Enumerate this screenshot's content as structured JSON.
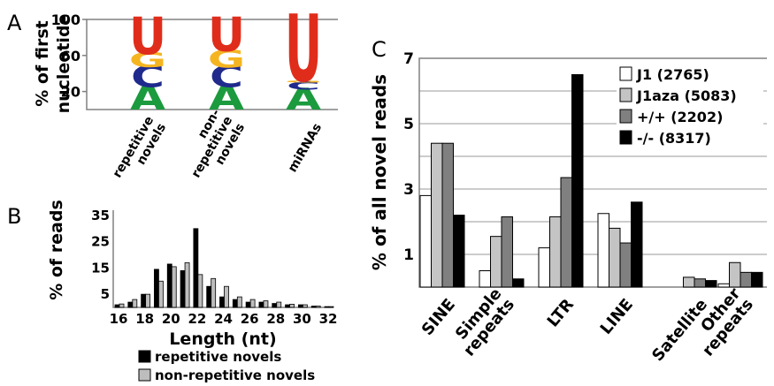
{
  "panel_labels": {
    "a": "A",
    "b": "B",
    "c": "C"
  },
  "chart_data": [
    {
      "type": "sequence-logo",
      "panel": "A",
      "ylabel": [
        "% of first",
        "nucleotide"
      ],
      "ylim": [
        0,
        100
      ],
      "yticks": [
        20,
        60,
        100
      ],
      "categories": [
        "repetitive novels",
        "non-repetitive novels",
        "miRNAs"
      ],
      "category_lines": [
        [
          "repetitive",
          "novels"
        ],
        [
          "non-",
          "repetitive",
          "novels"
        ],
        [
          "miRNAs"
        ]
      ],
      "letter_colors": {
        "U": "#e02d1b",
        "G": "#f5b521",
        "C": "#1f2a8c",
        "A": "#1c9a3e"
      },
      "series": [
        {
          "name": "repetitive novels",
          "letters": [
            {
              "letter": "A",
              "value": 25
            },
            {
              "letter": "C",
              "value": 22
            },
            {
              "letter": "G",
              "value": 15
            },
            {
              "letter": "U",
              "value": 38
            }
          ]
        },
        {
          "name": "non-repetitive novels",
          "letters": [
            {
              "letter": "A",
              "value": 25
            },
            {
              "letter": "C",
              "value": 22
            },
            {
              "letter": "G",
              "value": 18
            },
            {
              "letter": "U",
              "value": 35
            }
          ]
        },
        {
          "name": "miRNAs",
          "letters": [
            {
              "letter": "A",
              "value": 22
            },
            {
              "letter": "C",
              "value": 8
            },
            {
              "letter": "G",
              "value": 2
            },
            {
              "letter": "U",
              "value": 68
            }
          ]
        }
      ]
    },
    {
      "type": "bar",
      "panel": "B",
      "xlabel": "Length (nt)",
      "ylabel": "% of reads",
      "ylim": [
        0,
        37
      ],
      "yticks": [
        5,
        15,
        25,
        35
      ],
      "xticks": [
        16,
        18,
        20,
        22,
        24,
        26,
        28,
        30,
        32
      ],
      "categories": [
        16,
        17,
        18,
        19,
        20,
        21,
        22,
        23,
        24,
        25,
        26,
        27,
        28,
        29,
        30,
        31,
        32
      ],
      "series": [
        {
          "name": "repetitive novels",
          "color": "#000000",
          "values": [
            1,
            2,
            5,
            14.5,
            16.5,
            14,
            30,
            8,
            4,
            3,
            2,
            2,
            1.5,
            1,
            1,
            0.5,
            0.3
          ]
        },
        {
          "name": "non-repetitive novels",
          "color": "#bdbdbd",
          "values": [
            1.3,
            3,
            5,
            10,
            15.5,
            17,
            12.5,
            11,
            8,
            4,
            3,
            2.5,
            2,
            1.2,
            1,
            0.5,
            0.3
          ]
        }
      ],
      "legend": [
        "repetitive novels",
        "non-repetitive novels"
      ]
    },
    {
      "type": "bar",
      "panel": "C",
      "ylabel": "% of all novel reads",
      "ylim": [
        0,
        7
      ],
      "yticks": [
        1,
        3,
        5,
        7
      ],
      "categories": [
        "SINE",
        "Simple repeats",
        "LTR",
        "LINE",
        "Satellite",
        "Other repeats"
      ],
      "category_lines": [
        [
          "SINE"
        ],
        [
          "Simple",
          "repeats"
        ],
        [
          "LTR"
        ],
        [
          "LINE"
        ],
        [
          "Satellite"
        ],
        [
          "Other",
          "repeats"
        ]
      ],
      "series": [
        {
          "name": "J1 (2765)",
          "color": "#ffffff",
          "values": [
            2.8,
            0.5,
            1.2,
            2.25,
            0,
            0.1
          ]
        },
        {
          "name": "J1aza (5083)",
          "color": "#c4c4c4",
          "values": [
            4.4,
            1.55,
            2.15,
            1.8,
            0.3,
            0.75
          ]
        },
        {
          "name": "+/+ (2202)",
          "color": "#808080",
          "values": [
            4.4,
            2.15,
            3.35,
            1.35,
            0.25,
            0.45
          ]
        },
        {
          "name": "-/- (8317)",
          "color": "#000000",
          "values": [
            2.2,
            0.25,
            6.5,
            2.6,
            0.2,
            0.45
          ]
        }
      ],
      "legend_placement": "top-right",
      "grid": true
    }
  ]
}
